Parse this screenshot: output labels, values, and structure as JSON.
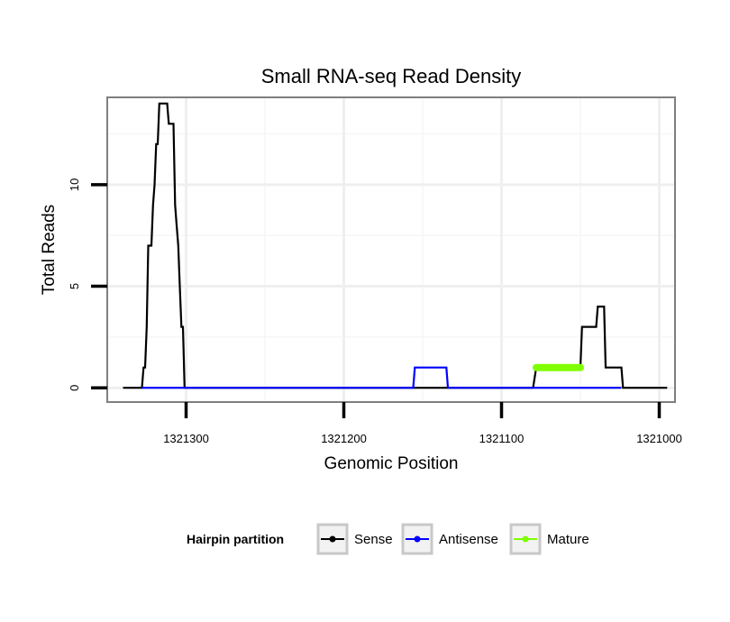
{
  "chart_data": {
    "type": "line",
    "title": "Small RNA-seq Read Density",
    "xlabel": "Genomic Position",
    "ylabel": "Total Reads",
    "xlim": [
      1321350,
      1320990
    ],
    "x_reversed": true,
    "ylim": [
      -0.7,
      14.3
    ],
    "xticks": [
      1321300,
      1321200,
      1321100,
      1321000
    ],
    "xtick_labels": [
      "1321300",
      "1321200",
      "1321100",
      "1321000"
    ],
    "yticks": [
      0,
      5,
      10
    ],
    "ytick_labels": [
      "0",
      "5",
      "10"
    ],
    "x_minor_gridlines": [
      1321250,
      1321150,
      1321050
    ],
    "y_minor_gridlines": [
      2.5,
      7.5,
      12.5
    ],
    "grid": true,
    "legend": {
      "title": "Hairpin partition",
      "position": "bottom",
      "entries": [
        "Sense",
        "Antisense",
        "Mature"
      ]
    },
    "series": [
      {
        "name": "Sense",
        "color": "#000000",
        "points": [
          [
            1321340,
            0
          ],
          [
            1321328,
            0
          ],
          [
            1321327,
            1
          ],
          [
            1321326,
            1
          ],
          [
            1321325,
            3
          ],
          [
            1321324,
            7
          ],
          [
            1321322,
            7
          ],
          [
            1321321,
            9
          ],
          [
            1321320,
            10
          ],
          [
            1321319,
            12
          ],
          [
            1321318,
            12
          ],
          [
            1321317,
            14
          ],
          [
            1321312,
            14
          ],
          [
            1321311,
            13
          ],
          [
            1321308,
            13
          ],
          [
            1321307,
            9
          ],
          [
            1321306,
            8
          ],
          [
            1321305,
            7
          ],
          [
            1321304,
            5
          ],
          [
            1321303,
            3
          ],
          [
            1321302,
            3
          ],
          [
            1321301,
            0
          ],
          [
            1321140,
            0
          ],
          [
            1321120,
            0
          ],
          [
            1321080,
            0
          ],
          [
            1321078,
            1
          ],
          [
            1321050,
            1
          ],
          [
            1321049,
            3
          ],
          [
            1321040,
            3
          ],
          [
            1321039,
            4
          ],
          [
            1321035,
            4
          ],
          [
            1321034,
            1
          ],
          [
            1321024,
            1
          ],
          [
            1321023,
            0
          ],
          [
            1320995,
            0
          ]
        ]
      },
      {
        "name": "Antisense",
        "color": "#0000ff",
        "points": [
          [
            1321328,
            0
          ],
          [
            1321301,
            0
          ],
          [
            1321156,
            0
          ],
          [
            1321155,
            1
          ],
          [
            1321135,
            1
          ],
          [
            1321134,
            0
          ],
          [
            1321077,
            0
          ],
          [
            1321024,
            0
          ]
        ]
      },
      {
        "name": "Mature",
        "color": "#7fff00",
        "points": [
          [
            1321078,
            1
          ],
          [
            1321050,
            1
          ]
        ]
      }
    ]
  }
}
